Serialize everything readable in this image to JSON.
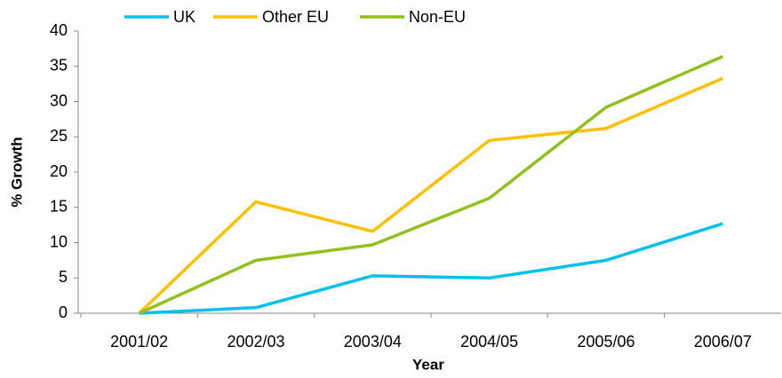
{
  "chart_data": {
    "type": "line",
    "categories": [
      "2001/02",
      "2002/03",
      "2003/04",
      "2004/05",
      "2005/06",
      "2006/07"
    ],
    "series": [
      {
        "name": "UK",
        "color": "#00c0f0",
        "values": [
          0,
          0.8,
          5.3,
          5.0,
          7.5,
          12.7
        ]
      },
      {
        "name": "Other EU",
        "color": "#ffc000",
        "values": [
          0,
          15.8,
          11.6,
          24.5,
          26.2,
          33.3
        ]
      },
      {
        "name": "Non-EU",
        "color": "#92c01c",
        "values": [
          0,
          7.5,
          9.7,
          16.3,
          29.2,
          36.4
        ]
      }
    ],
    "xlabel": "Year",
    "ylabel": "% Growth",
    "ylim": [
      0,
      40
    ],
    "yticks": [
      0,
      5,
      10,
      15,
      20,
      25,
      30,
      35,
      40
    ],
    "grid": false,
    "legend": "top"
  }
}
